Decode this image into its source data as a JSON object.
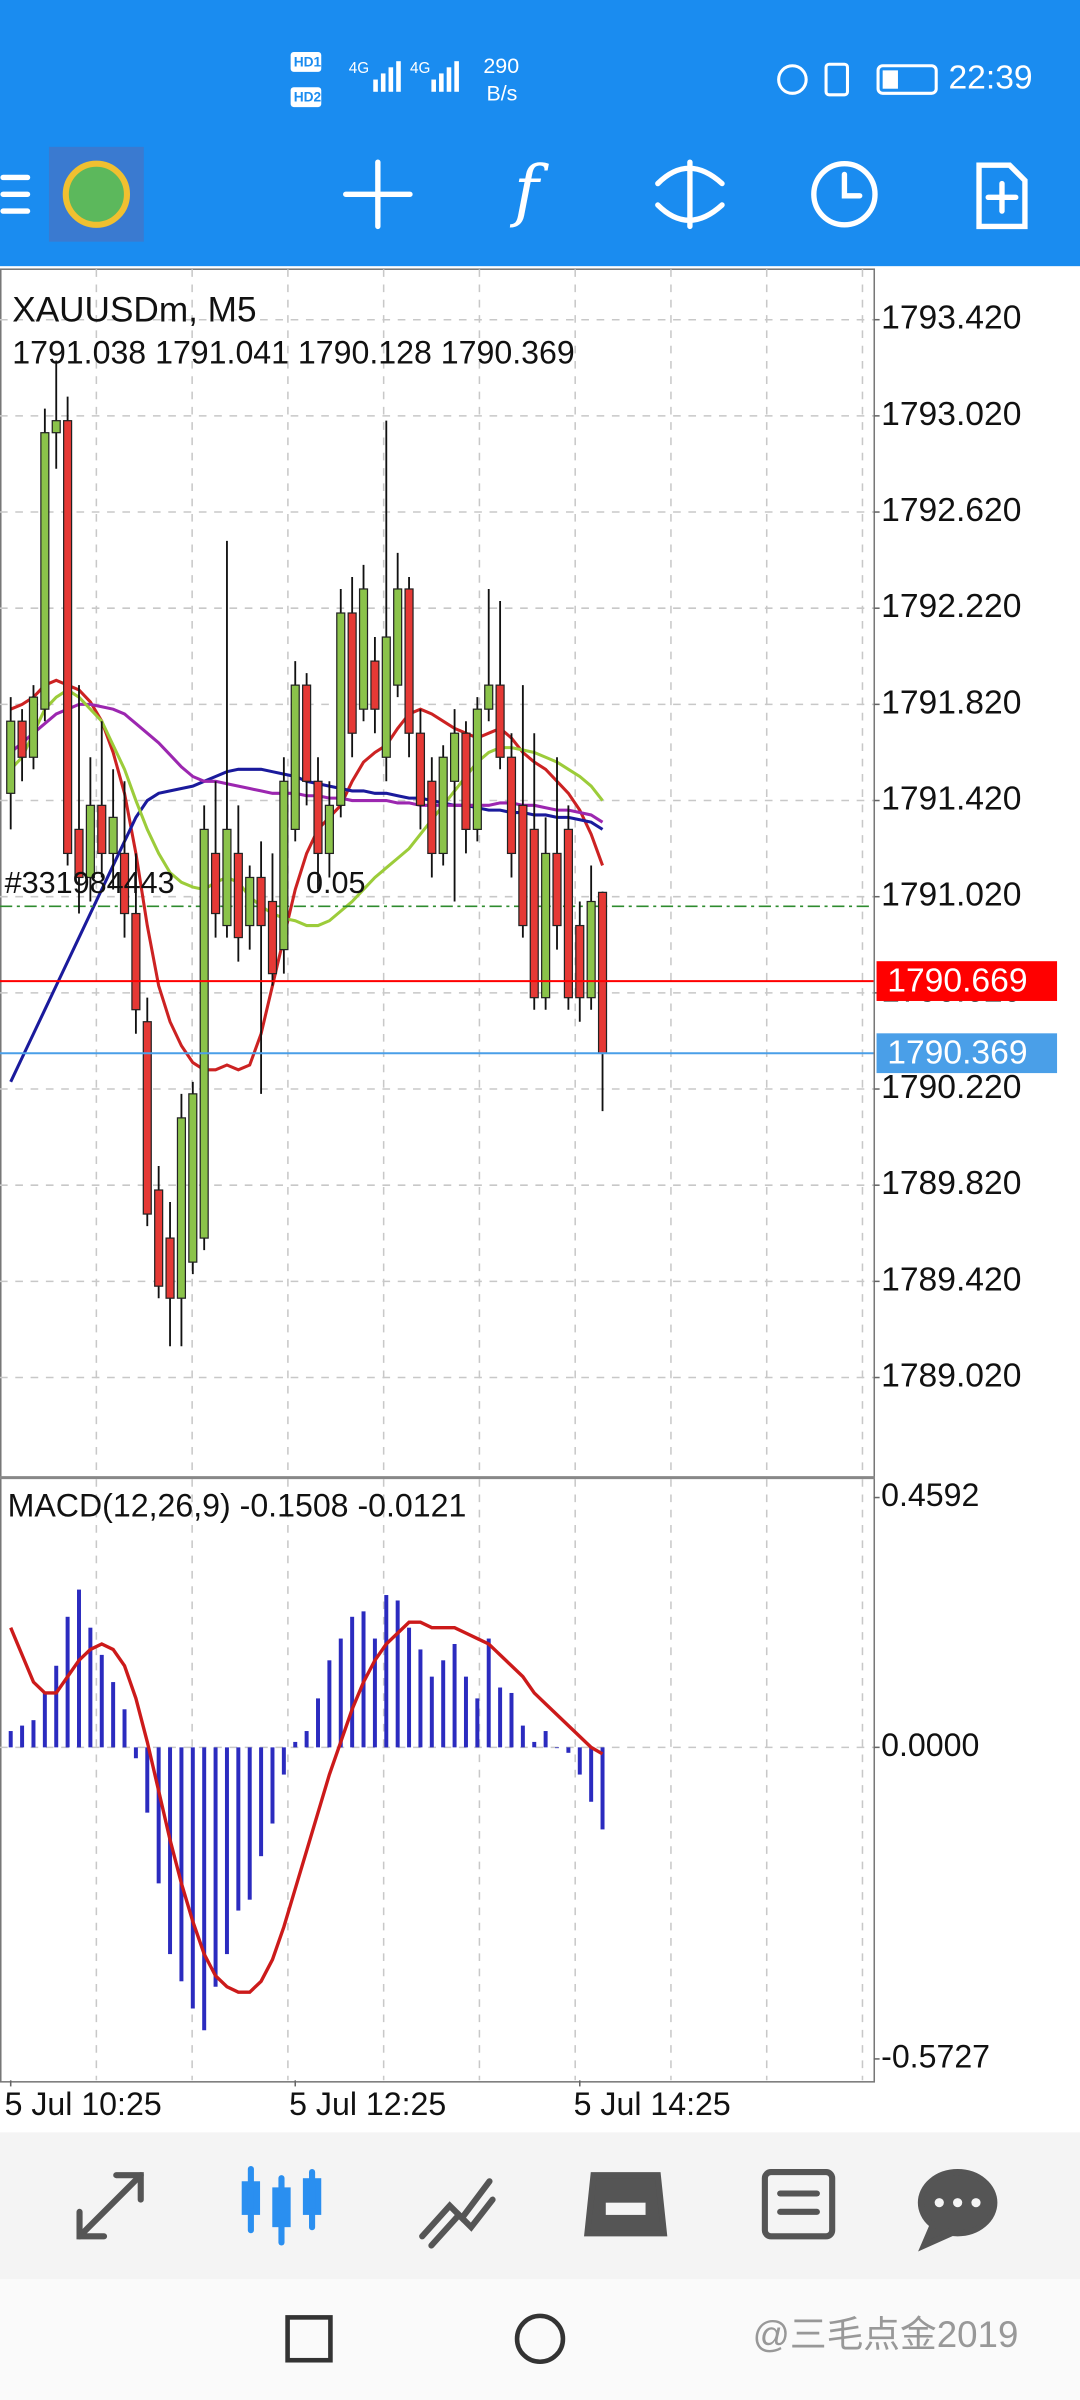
{
  "status_bar": {
    "hd": [
      "HD1",
      "HD2"
    ],
    "network": [
      "4G",
      "4G"
    ],
    "speed": "290",
    "speed_unit": "B/s",
    "time": "22:39"
  },
  "toolbar": {
    "function_icon": "f"
  },
  "chart_data": {
    "type": "candlestick",
    "title": "XAUUSDm, M5",
    "ohlc_text": "1791.038 1791.041 1790.128 1790.369",
    "categories": [
      "5 Jul 10:25",
      null,
      null,
      null,
      null,
      null,
      null,
      null,
      null,
      null,
      null,
      null,
      null,
      null,
      null,
      null,
      null,
      null,
      null,
      null,
      null,
      null,
      null,
      null,
      null,
      "5 Jul 12:25",
      null,
      null,
      null,
      null,
      null,
      null,
      null,
      null,
      null,
      null,
      null,
      null,
      null,
      null,
      null,
      null,
      null,
      null,
      null,
      null,
      null,
      null,
      null,
      null,
      "5 Jul 14:25",
      null,
      null
    ],
    "open": [
      1791.45,
      1791.75,
      1791.6,
      1791.8,
      1792.95,
      1793.0,
      1791.3,
      1791.1,
      1791.4,
      1791.2,
      1791.2,
      1790.95,
      1790.5,
      1789.8,
      1789.6,
      1789.35,
      1789.5,
      1789.6,
      1791.2,
      1790.9,
      1791.2,
      1790.9,
      1791.1,
      1791.0,
      1790.8,
      1791.3,
      1791.9,
      1791.5,
      1791.2,
      1791.4,
      1792.2,
      1791.8,
      1792.0,
      1791.6,
      1791.9,
      1792.3,
      1791.7,
      1791.5,
      1791.2,
      1791.5,
      1791.7,
      1791.3,
      1791.8,
      1791.9,
      1791.6,
      1791.4,
      1791.3,
      1790.6,
      1791.2,
      1791.3,
      1790.9,
      1790.6,
      1791.038
    ],
    "high": [
      1791.85,
      1791.8,
      1791.9,
      1793.05,
      1793.25,
      1793.1,
      1791.9,
      1791.6,
      1791.75,
      1791.55,
      1791.5,
      1791.2,
      1790.6,
      1789.9,
      1789.75,
      1790.2,
      1790.25,
      1791.4,
      1791.5,
      1792.5,
      1791.4,
      1791.15,
      1791.25,
      1791.2,
      1791.6,
      1792.0,
      1791.95,
      1791.6,
      1791.5,
      1792.3,
      1792.35,
      1792.4,
      1792.1,
      1793.0,
      1792.45,
      1792.35,
      1791.8,
      1791.6,
      1791.65,
      1791.8,
      1791.75,
      1791.85,
      1792.3,
      1792.25,
      1791.7,
      1791.9,
      1791.7,
      1791.35,
      1791.6,
      1791.4,
      1791.0,
      1791.15,
      1791.041
    ],
    "low": [
      1791.3,
      1791.5,
      1791.55,
      1791.75,
      1792.8,
      1791.15,
      1790.95,
      1791.0,
      1791.1,
      1791.05,
      1790.85,
      1790.45,
      1789.65,
      1789.35,
      1789.15,
      1789.15,
      1789.45,
      1789.55,
      1790.85,
      1790.85,
      1790.75,
      1790.8,
      1790.2,
      1790.65,
      1790.7,
      1791.25,
      1791.4,
      1791.05,
      1791.1,
      1791.35,
      1791.6,
      1791.75,
      1791.7,
      1791.5,
      1791.85,
      1791.6,
      1791.3,
      1791.1,
      1791.15,
      1791.0,
      1791.2,
      1791.25,
      1791.75,
      1791.55,
      1791.1,
      1790.85,
      1790.55,
      1790.55,
      1790.8,
      1790.55,
      1790.5,
      1790.55,
      1790.128
    ],
    "close": [
      1791.75,
      1791.6,
      1791.85,
      1792.95,
      1793.0,
      1791.2,
      1791.1,
      1791.4,
      1791.2,
      1791.35,
      1790.95,
      1790.55,
      1789.7,
      1789.4,
      1789.35,
      1790.1,
      1790.2,
      1791.3,
      1790.95,
      1791.3,
      1790.85,
      1791.1,
      1790.9,
      1790.7,
      1791.5,
      1791.9,
      1791.5,
      1791.2,
      1791.4,
      1792.2,
      1791.7,
      1792.3,
      1791.8,
      1792.1,
      1792.3,
      1791.7,
      1791.4,
      1791.2,
      1791.6,
      1791.7,
      1791.3,
      1791.8,
      1791.9,
      1791.6,
      1791.2,
      1790.9,
      1790.6,
      1791.2,
      1790.9,
      1790.6,
      1790.6,
      1791.0,
      1790.369
    ],
    "up_color": "#8bc34a",
    "down_color": "#e53935",
    "series": [
      {
        "color": "#cc2222",
        "values": [
          1791.8,
          1791.82,
          1791.85,
          1791.9,
          1791.92,
          1791.9,
          1791.88,
          1791.83,
          1791.75,
          1791.62,
          1791.45,
          1791.2,
          1790.9,
          1790.65,
          1790.5,
          1790.4,
          1790.33,
          1790.3,
          1790.3,
          1790.32,
          1790.3,
          1790.32,
          1790.45,
          1790.65,
          1790.85,
          1791.05,
          1791.2,
          1791.3,
          1791.35,
          1791.4,
          1791.5,
          1791.58,
          1791.62,
          1791.65,
          1791.72,
          1791.78,
          1791.8,
          1791.78,
          1791.75,
          1791.72,
          1791.7,
          1791.68,
          1791.7,
          1791.72,
          1791.68,
          1791.62,
          1791.58,
          1791.55,
          1791.5,
          1791.45,
          1791.38,
          1791.28,
          1791.15
        ]
      },
      {
        "color": "#1a1a9c",
        "values": [
          1790.25,
          1790.35,
          1790.45,
          1790.55,
          1790.65,
          1790.75,
          1790.85,
          1790.95,
          1791.05,
          1791.15,
          1791.25,
          1791.35,
          1791.42,
          1791.45,
          1791.46,
          1791.47,
          1791.48,
          1791.5,
          1791.52,
          1791.54,
          1791.55,
          1791.55,
          1791.55,
          1791.54,
          1791.53,
          1791.52,
          1791.5,
          1791.49,
          1791.48,
          1791.47,
          1791.46,
          1791.46,
          1791.45,
          1791.45,
          1791.44,
          1791.43,
          1791.43,
          1791.42,
          1791.41,
          1791.4,
          1791.4,
          1791.39,
          1791.38,
          1791.38,
          1791.37,
          1791.37,
          1791.36,
          1791.36,
          1791.35,
          1791.35,
          1791.34,
          1791.33,
          1791.3
        ]
      },
      {
        "color": "#9c27b0",
        "values": [
          1791.62,
          1791.66,
          1791.7,
          1791.74,
          1791.78,
          1791.8,
          1791.82,
          1791.82,
          1791.81,
          1791.8,
          1791.78,
          1791.74,
          1791.7,
          1791.66,
          1791.61,
          1791.56,
          1791.52,
          1791.5,
          1791.5,
          1791.49,
          1791.48,
          1791.47,
          1791.46,
          1791.45,
          1791.45,
          1791.45,
          1791.44,
          1791.44,
          1791.43,
          1791.43,
          1791.42,
          1791.42,
          1791.42,
          1791.42,
          1791.41,
          1791.41,
          1791.4,
          1791.4,
          1791.4,
          1791.4,
          1791.4,
          1791.4,
          1791.4,
          1791.41,
          1791.41,
          1791.4,
          1791.4,
          1791.39,
          1791.38,
          1791.38,
          1791.37,
          1791.36,
          1791.33
        ]
      },
      {
        "color": "#9ccc3a",
        "values": [
          1791.55,
          1791.6,
          1791.7,
          1791.8,
          1791.85,
          1791.88,
          1791.85,
          1791.8,
          1791.75,
          1791.65,
          1791.55,
          1791.42,
          1791.3,
          1791.2,
          1791.12,
          1791.08,
          1791.06,
          1791.05,
          1791.08,
          1791.1,
          1791.08,
          1791.02,
          1790.98,
          1790.95,
          1790.93,
          1790.92,
          1790.9,
          1790.9,
          1790.92,
          1790.96,
          1791.0,
          1791.05,
          1791.1,
          1791.14,
          1791.18,
          1791.22,
          1791.28,
          1791.34,
          1791.4,
          1791.46,
          1791.52,
          1791.58,
          1791.62,
          1791.64,
          1791.64,
          1791.63,
          1791.62,
          1791.6,
          1791.58,
          1791.55,
          1791.52,
          1791.48,
          1791.42
        ]
      }
    ],
    "ylim": [
      1788.61,
      1793.63
    ],
    "yticks": [
      {
        "value": 1793.42,
        "label": "1793.420"
      },
      {
        "value": 1793.02,
        "label": "1793.020"
      },
      {
        "value": 1792.62,
        "label": "1792.620"
      },
      {
        "value": 1792.22,
        "label": "1792.220"
      },
      {
        "value": 1791.82,
        "label": "1791.820"
      },
      {
        "value": 1791.42,
        "label": "1791.420"
      },
      {
        "value": 1791.02,
        "label": "1791.020"
      },
      {
        "value": 1790.62,
        "label": "1790.620"
      },
      {
        "value": 1790.22,
        "label": "1790.220"
      },
      {
        "value": 1789.82,
        "label": "1789.820"
      },
      {
        "value": 1789.42,
        "label": "1789.420"
      },
      {
        "value": 1789.02,
        "label": "1789.020"
      }
    ],
    "grid": true,
    "ask": {
      "value": 1790.669,
      "color": "#ff0000"
    },
    "bid": {
      "value": 1790.369,
      "color": "#4a9fe8"
    },
    "order_line": {
      "price": 1790.98,
      "label": "#331984443",
      "volume": "0.05",
      "color": "#2e8b2e"
    }
  },
  "macd_data": {
    "type": "histogram-line",
    "title": "MACD(12,26,9)  -0.1508  -0.0121",
    "values": [
      0.03,
      0.04,
      0.05,
      0.1,
      0.15,
      0.24,
      0.29,
      0.22,
      0.17,
      0.12,
      0.07,
      -0.02,
      -0.12,
      -0.25,
      -0.38,
      -0.43,
      -0.48,
      -0.52,
      -0.44,
      -0.38,
      -0.3,
      -0.28,
      -0.2,
      -0.14,
      -0.05,
      0.01,
      0.03,
      0.09,
      0.16,
      0.2,
      0.24,
      0.25,
      0.2,
      0.28,
      0.27,
      0.22,
      0.18,
      0.13,
      0.16,
      0.19,
      0.13,
      0.09,
      0.2,
      0.11,
      0.1,
      0.04,
      0.01,
      0.03,
      0.0,
      -0.01,
      -0.05,
      -0.1,
      -0.1508
    ],
    "color": "#2b2bbf",
    "signal": {
      "color": "#cc1a1a",
      "values": [
        0.22,
        0.17,
        0.12,
        0.1,
        0.1,
        0.13,
        0.16,
        0.18,
        0.19,
        0.18,
        0.15,
        0.09,
        0.01,
        -0.08,
        -0.17,
        -0.25,
        -0.32,
        -0.38,
        -0.42,
        -0.44,
        -0.45,
        -0.45,
        -0.43,
        -0.39,
        -0.33,
        -0.26,
        -0.19,
        -0.12,
        -0.05,
        0.01,
        0.07,
        0.12,
        0.16,
        0.19,
        0.21,
        0.23,
        0.23,
        0.22,
        0.22,
        0.22,
        0.21,
        0.2,
        0.19,
        0.17,
        0.15,
        0.13,
        0.1,
        0.08,
        0.06,
        0.04,
        0.02,
        0.0,
        -0.0121
      ]
    },
    "ylim": [
      -0.612,
      0.493
    ],
    "yticks": [
      0.4592,
      {
        "value": 0,
        "label": "0.0000"
      },
      -0.5727
    ]
  },
  "watermark": "@三毛点金2019"
}
